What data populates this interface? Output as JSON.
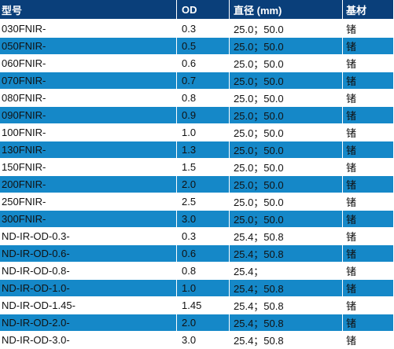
{
  "headers": [
    "型号",
    "OD",
    "直径 (mm)",
    "基材"
  ],
  "rows": [
    [
      "030FNIR-",
      "0.3",
      "25.0；50.0",
      "锗"
    ],
    [
      "050FNIR-",
      "0.5",
      "25.0；50.0",
      "锗"
    ],
    [
      "060FNIR-",
      "0.6",
      "25.0；50.0",
      "锗"
    ],
    [
      "070FNIR-",
      "0.7",
      "25.0；50.0",
      "锗"
    ],
    [
      "080FNIR-",
      "0.8",
      "25.0；50.0",
      "锗"
    ],
    [
      "090FNIR-",
      "0.9",
      "25.0；50.0",
      "锗"
    ],
    [
      "100FNIR-",
      "1.0",
      "25.0；50.0",
      "锗"
    ],
    [
      "130FNIR-",
      "1.3",
      "25.0；50.0",
      "锗"
    ],
    [
      "150FNIR-",
      "1.5",
      "25.0；50.0",
      "锗"
    ],
    [
      "200FNIR-",
      "2.0",
      "25.0；50.0",
      "锗"
    ],
    [
      "250FNIR-",
      "2.5",
      "25.0；50.0",
      "锗"
    ],
    [
      "300FNIR-",
      "3.0",
      "25.0；50.0",
      "锗"
    ],
    [
      "ND-IR-OD-0.3-",
      "0.3",
      "25.4；50.8",
      "锗"
    ],
    [
      "ND-IR-OD-0.6-",
      "0.6",
      "25.4；50.8",
      "锗"
    ],
    [
      "ND-IR-OD-0.8-",
      "0.8",
      "25.4；",
      "锗"
    ],
    [
      "ND-IR-OD-1.0-",
      "1.0",
      "25.4；50.8",
      "锗"
    ],
    [
      "ND-IR-OD-1.45-",
      "1.45",
      "25.4；50.8",
      "锗"
    ],
    [
      "ND-IR-OD-2.0-",
      "2.0",
      "25.4；50.8",
      "锗"
    ],
    [
      "ND-IR-OD-3.0-",
      "3.0",
      "25.4；50.8",
      "锗"
    ]
  ],
  "colors": {
    "header": "#0a3f7a",
    "alt_row": "#1588c8"
  }
}
